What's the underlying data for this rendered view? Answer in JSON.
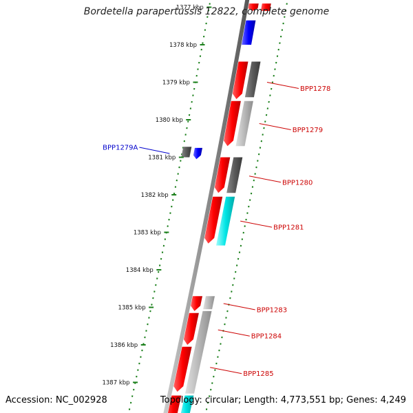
{
  "title": "Bordetella parapertussis 12822, complete genome",
  "footer": {
    "accession": "Accession: NC_002928",
    "summary": "Topology: circular; Length: 4,773,551 bp; Genes: 4,249"
  },
  "colors": {
    "red": "#ff0000",
    "blue": "#0000ff",
    "dark_gray": "#5a5a5a",
    "light_gray": "#b8b8b8",
    "cyan": "#00e5e5",
    "ruler_green": "#1a7f1a",
    "label_red": "#cc0000",
    "label_blue": "#0000cc"
  },
  "scale_unit": "kbp",
  "ticks": [
    {
      "kbp": 1377,
      "label": "1377 kbp"
    },
    {
      "kbp": 1378,
      "label": "1378 kbp"
    },
    {
      "kbp": 1379,
      "label": "1379 kbp"
    },
    {
      "kbp": 1380,
      "label": "1380 kbp"
    },
    {
      "kbp": 1381,
      "label": "1381 kbp"
    },
    {
      "kbp": 1382,
      "label": "1382 kbp"
    },
    {
      "kbp": 1383,
      "label": "1383 kbp"
    },
    {
      "kbp": 1384,
      "label": "1384 kbp"
    },
    {
      "kbp": 1385,
      "label": "1385 kbp"
    },
    {
      "kbp": 1386,
      "label": "1386 kbp"
    },
    {
      "kbp": 1387,
      "label": "1387 kbp"
    }
  ],
  "genes": [
    {
      "start": 1376.9,
      "end": 1377.1,
      "track": "cds",
      "color": "red",
      "dir": "fwd"
    },
    {
      "start": 1376.9,
      "end": 1377.1,
      "track": "cog",
      "color": "red",
      "dir": "none"
    },
    {
      "start": 1377.35,
      "end": 1378.0,
      "track": "cds",
      "color": "blue",
      "dir": "none"
    },
    {
      "start": 1378.45,
      "end": 1379.45,
      "track": "cds",
      "color": "red",
      "dir": "fwd"
    },
    {
      "start": 1378.45,
      "end": 1379.4,
      "track": "cog",
      "color": "dark_gray",
      "dir": "none"
    },
    {
      "start": 1379.5,
      "end": 1380.7,
      "track": "cds",
      "color": "red",
      "dir": "fwd"
    },
    {
      "start": 1379.5,
      "end": 1380.7,
      "track": "cog",
      "color": "light_gray",
      "dir": "none"
    },
    {
      "start": 1380.75,
      "end": 1381.05,
      "track": "inner2",
      "color": "blue",
      "dir": "fwd"
    },
    {
      "start": 1380.72,
      "end": 1381.0,
      "track": "inner1",
      "color": "dark_gray",
      "dir": "none"
    },
    {
      "start": 1381.0,
      "end": 1381.95,
      "track": "cds",
      "color": "red",
      "dir": "fwd"
    },
    {
      "start": 1381.0,
      "end": 1381.95,
      "track": "cog",
      "color": "dark_gray",
      "dir": "none"
    },
    {
      "start": 1382.05,
      "end": 1383.3,
      "track": "cds",
      "color": "red",
      "dir": "fwd"
    },
    {
      "start": 1382.05,
      "end": 1383.35,
      "track": "cog",
      "color": "cyan",
      "dir": "none"
    },
    {
      "start": 1384.7,
      "end": 1385.1,
      "track": "cds",
      "color": "red",
      "dir": "fwd"
    },
    {
      "start": 1384.7,
      "end": 1385.05,
      "track": "cog",
      "color": "light_gray",
      "dir": "none"
    },
    {
      "start": 1385.15,
      "end": 1386.0,
      "track": "cds",
      "color": "red",
      "dir": "fwd"
    },
    {
      "start": 1385.1,
      "end": 1387.3,
      "track": "cog",
      "color": "light_gray",
      "dir": "none"
    },
    {
      "start": 1386.05,
      "end": 1387.25,
      "track": "cds",
      "color": "red",
      "dir": "fwd"
    },
    {
      "start": 1387.35,
      "end": 1388.2,
      "track": "cds",
      "color": "red",
      "dir": "none"
    },
    {
      "start": 1387.35,
      "end": 1388.2,
      "track": "cog",
      "color": "cyan",
      "dir": "none"
    }
  ],
  "gene_labels": [
    {
      "text": "BPP1278",
      "kbp": 1379.0,
      "side": "right",
      "color": "label_red"
    },
    {
      "text": "BPP1279",
      "kbp": 1380.1,
      "side": "right",
      "color": "label_red"
    },
    {
      "text": "BPP1280",
      "kbp": 1381.5,
      "side": "right",
      "color": "label_red"
    },
    {
      "text": "BPP1281",
      "kbp": 1382.7,
      "side": "right",
      "color": "label_red"
    },
    {
      "text": "BPP1279A",
      "kbp": 1380.9,
      "side": "left",
      "color": "label_blue"
    },
    {
      "text": "BPP1283",
      "kbp": 1384.9,
      "side": "right",
      "color": "label_red"
    },
    {
      "text": "BPP1284",
      "kbp": 1385.6,
      "side": "right",
      "color": "label_red"
    },
    {
      "text": "BPP1285",
      "kbp": 1386.6,
      "side": "right",
      "color": "label_red"
    }
  ]
}
